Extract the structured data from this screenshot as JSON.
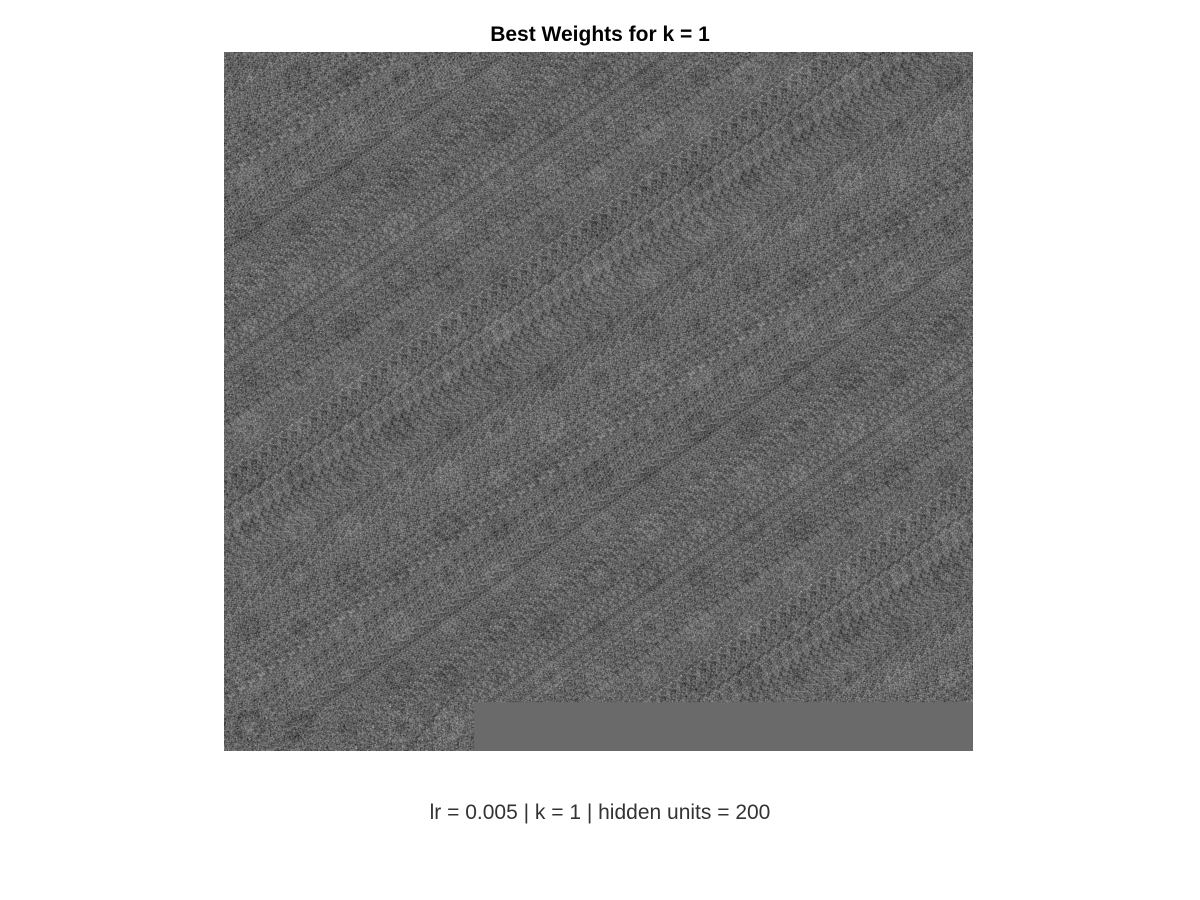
{
  "figure": {
    "title": "Best Weights for k = 1",
    "caption": "lr = 0.005 | k = 1 | hidden units = 200"
  },
  "image": {
    "description_type": "grid of hidden unit weight visualizations",
    "hidden_units": 200,
    "tile_count": 200,
    "tile_grid_columns": 15,
    "tile_grid_rows": 14,
    "empty_fill_color": "#6a6a6a",
    "colormap": "grayscale"
  }
}
